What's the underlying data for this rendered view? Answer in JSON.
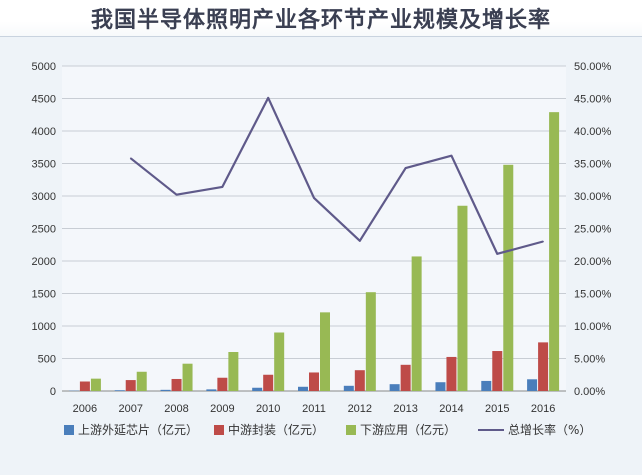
{
  "title": "我国半导体照明产业各环节产业规模及增长率",
  "colors": {
    "upstream": "#4a7ebb",
    "midstream": "#be4b48",
    "downstream": "#98b954",
    "growth": "#5f5a8a"
  },
  "chart_data": {
    "type": "bar",
    "title": "我国半导体照明产业各环节产业规模及增长率",
    "categories": [
      "2006",
      "2007",
      "2008",
      "2009",
      "2010",
      "2011",
      "2012",
      "2013",
      "2014",
      "2015",
      "2016"
    ],
    "series": [
      {
        "name": "上游外延芯片（亿元）",
        "type": "bar",
        "axis": "left",
        "values": [
          5,
          12,
          18,
          25,
          50,
          65,
          80,
          105,
          135,
          155,
          180
        ]
      },
      {
        "name": "中游封装（亿元）",
        "type": "bar",
        "axis": "left",
        "values": [
          146,
          168,
          185,
          204,
          250,
          285,
          320,
          403,
          524,
          615,
          748
        ]
      },
      {
        "name": "下游应用（亿元）",
        "type": "bar",
        "axis": "left",
        "values": [
          190,
          296,
          420,
          600,
          900,
          1210,
          1520,
          2070,
          2850,
          3480,
          4290
        ]
      },
      {
        "name": "总增长率（%）",
        "type": "line",
        "axis": "right",
        "values": [
          null,
          35.8,
          30.2,
          31.4,
          45.1,
          29.7,
          23.1,
          34.3,
          36.2,
          21.1,
          23.0
        ]
      }
    ],
    "left_axis": {
      "ylim": [
        0,
        5000
      ],
      "ticks": [
        "0",
        "500",
        "1000",
        "1500",
        "2000",
        "2500",
        "3000",
        "3500",
        "4000",
        "4500",
        "5000"
      ]
    },
    "right_axis": {
      "ylim": [
        0,
        50
      ],
      "ticks": [
        "0.00%",
        "5.00%",
        "10.00%",
        "15.00%",
        "20.00%",
        "25.00%",
        "30.00%",
        "35.00%",
        "40.00%",
        "45.00%",
        "50.00%"
      ]
    },
    "grid": true,
    "legend_position": "bottom"
  }
}
